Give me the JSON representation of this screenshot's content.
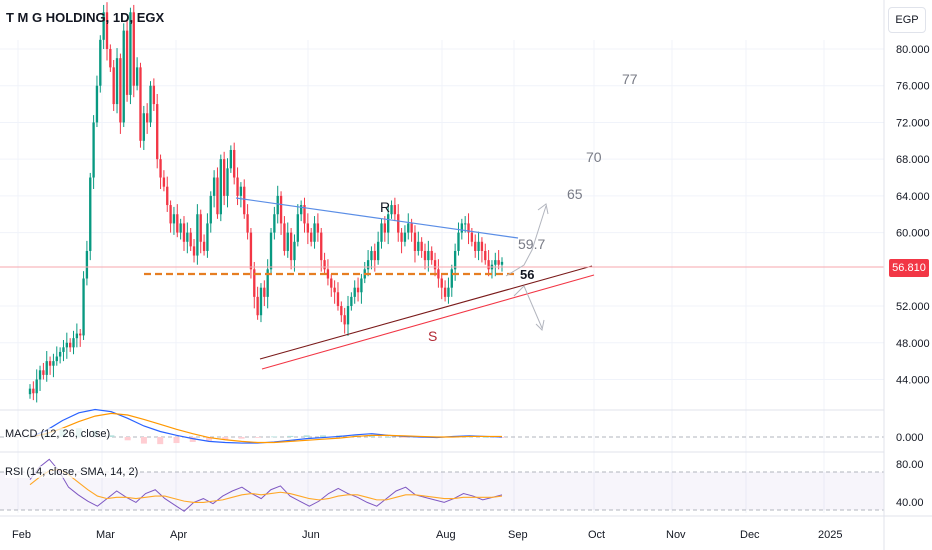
{
  "header": {
    "symbol_title": "T M G HOLDING, 1D, EGX",
    "currency_button": "EGP"
  },
  "price_tag": "56.810",
  "panes": {
    "macd_label": "MACD (12, 26, close)",
    "rsi_label": "RSI (14, close, SMA, 14, 2)"
  },
  "colors": {
    "up": "#089981",
    "down": "#f23645",
    "resistance_line": "#5b8ee6",
    "support_line": "#f23645",
    "support_line_inner": "#7a1a1a",
    "dashed_level": "#e67e22",
    "macd": "#2962ff",
    "signal": "#ff9800",
    "rsi": "#7e57c2",
    "rsi_sma": "#ffa726"
  },
  "chart_data": [
    {
      "type": "candlestick",
      "title": "T M G HOLDING, 1D, EGX",
      "currency": "EGP",
      "x_ticks": [
        "Feb",
        "Mar",
        "Apr",
        "Jun",
        "Aug",
        "Sep",
        "Oct",
        "Nov",
        "Dec",
        "2025"
      ],
      "y_ticks": [
        "80.000",
        "76.000",
        "72.000",
        "68.000",
        "64.000",
        "60.000",
        "52.000",
        "48.000",
        "44.000"
      ],
      "ylim": [
        41,
        86
      ],
      "last_price": 56.81,
      "close_series": [
        43,
        42.5,
        44,
        45,
        44.5,
        46,
        45.5,
        46,
        46.5,
        47,
        47.5,
        48,
        47.5,
        48.5,
        49,
        48.8,
        55,
        58,
        66,
        72,
        76,
        81,
        84,
        80,
        78,
        74,
        79,
        72,
        82,
        75,
        84,
        76,
        78,
        70,
        73,
        72,
        76,
        74,
        68,
        66,
        65,
        63,
        61,
        62,
        60,
        61,
        59,
        60,
        58.5,
        57.5,
        62,
        59,
        58,
        61,
        64,
        66,
        62,
        68,
        64,
        67,
        69,
        66,
        64,
        65,
        62,
        60,
        56,
        53,
        51,
        54,
        53,
        56,
        60,
        62,
        64,
        61,
        58,
        60,
        57,
        59,
        62,
        63,
        61,
        60,
        59,
        61,
        60,
        57,
        56,
        55,
        54,
        53.5,
        52,
        51,
        50,
        52,
        53,
        54,
        53.5,
        55,
        56,
        57,
        58,
        57,
        59,
        61,
        60,
        62,
        63,
        62,
        60,
        59,
        60,
        61,
        60,
        58,
        59,
        58,
        57,
        58,
        57,
        56,
        55,
        54,
        53,
        54,
        56,
        58,
        60,
        61,
        61,
        60,
        59,
        58,
        59,
        58,
        57,
        56,
        56.5,
        57,
        56.5,
        56.81
      ],
      "annotations": [
        "R",
        "S",
        "59.7",
        "56",
        "65",
        "70",
        "77"
      ],
      "resistance_line": {
        "from": 64.5,
        "to": 60
      },
      "dashed_level": 56,
      "targets": [
        59.7,
        65,
        70,
        77
      ]
    },
    {
      "type": "line",
      "title": "MACD (12, 26, close)",
      "y_ticks": [
        "0.000"
      ],
      "series": [
        {
          "values": [
            0,
            1.2,
            3,
            4.4,
            5,
            4.6,
            3.4,
            2,
            1,
            0.3,
            -0.3,
            -0.8,
            -1,
            -1.1,
            -1.1,
            -0.9,
            -0.6,
            -0.3,
            -0.1,
            0.1,
            0.4,
            0.6,
            0.3,
            0.1,
            0,
            -0.1,
            0.1,
            0.2,
            0.1,
            0
          ]
        },
        {
          "values": [
            0,
            0.6,
            1.6,
            2.8,
            3.8,
            4.3,
            4,
            3.2,
            2.3,
            1.4,
            0.6,
            -0.1,
            -0.5,
            -0.8,
            -1,
            -1,
            -0.8,
            -0.6,
            -0.4,
            -0.2,
            0.1,
            0.3,
            0.3,
            0.2,
            0.1,
            0,
            0,
            0.1,
            0.1,
            0.1
          ]
        }
      ]
    },
    {
      "type": "line",
      "title": "RSI (14, close, SMA, 14, 2)",
      "y_ticks": [
        "80.00",
        "40.00"
      ],
      "ylim": [
        28,
        92
      ],
      "series": [
        {
          "values": [
            64,
            74,
            80,
            71,
            58,
            52,
            47,
            43,
            49,
            55,
            50,
            46,
            53,
            56,
            49,
            44,
            39,
            46,
            49,
            45,
            51,
            55,
            58,
            53,
            49,
            56,
            59,
            51,
            47,
            43,
            47,
            53,
            57,
            53,
            50,
            46,
            43,
            49,
            55,
            58,
            52,
            50,
            48,
            46,
            49,
            53,
            51,
            48,
            50,
            52
          ]
        },
        {
          "values": [
            60,
            66,
            71,
            72,
            68,
            62,
            56,
            51,
            49,
            50,
            50,
            49,
            50,
            51,
            51,
            49,
            47,
            46,
            46,
            47,
            48,
            50,
            52,
            53,
            52,
            53,
            54,
            53,
            51,
            49,
            48,
            49,
            51,
            52,
            52,
            50,
            48,
            48,
            50,
            52,
            52,
            51,
            50,
            49,
            49,
            50,
            50,
            50,
            50,
            51
          ]
        }
      ]
    }
  ]
}
